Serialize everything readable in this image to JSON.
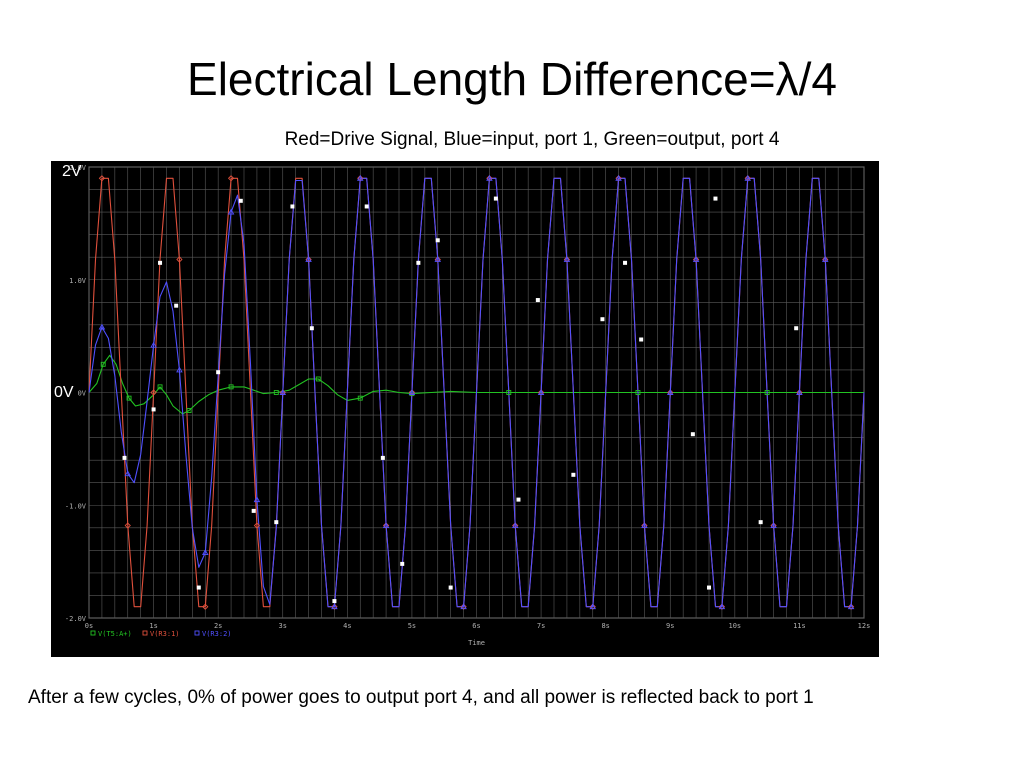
{
  "slide": {
    "title": "Electrical Length Difference=λ/4",
    "subtitle": "Red=Drive Signal, Blue=input, port 1, Green=output, port 4",
    "footer": "After a few cycles, 0% of power goes to output port 4, and all power is reflected back to port 1",
    "label_2v": "2V",
    "label_0v": "0V"
  },
  "chart_data": {
    "type": "line",
    "title": "",
    "xlabel": "Time",
    "ylabel": "",
    "xlim": [
      0,
      12
    ],
    "ylim": [
      -2.0,
      2.0
    ],
    "x_unit": "ns",
    "x_ticks": [
      "0s",
      "1s",
      "2s",
      "3s",
      "4s",
      "5s",
      "6s",
      "7s",
      "8s",
      "9s",
      "10s",
      "11s",
      "12s"
    ],
    "x_tick_values": [
      0,
      1,
      2,
      3,
      4,
      5,
      6,
      7,
      8,
      9,
      10,
      11,
      12
    ],
    "y_ticks": [
      "2.0V",
      "1.0V",
      "0V",
      "-1.0V",
      "-2.0V"
    ],
    "y_tick_values": [
      2.0,
      1.0,
      0.0,
      -1.0,
      -2.0
    ],
    "grid": true,
    "background": "#000000",
    "grid_color": "#5a5a5a",
    "legend_position": "bottom-left",
    "series": [
      {
        "name": "V(T5:A+)",
        "color": "#22c322",
        "marker": "square",
        "x": [
          0,
          0.12,
          0.22,
          0.32,
          0.42,
          0.52,
          0.62,
          0.72,
          0.85,
          1.0,
          1.1,
          1.2,
          1.3,
          1.45,
          1.55,
          1.7,
          1.85,
          2.0,
          2.2,
          2.4,
          2.55,
          2.7,
          2.9,
          3.1,
          3.25,
          3.4,
          3.55,
          3.7,
          3.85,
          4.0,
          4.2,
          4.4,
          4.6,
          4.8,
          5.0,
          5.3,
          5.6,
          6.0,
          6.5,
          7.0,
          7.5,
          8.0,
          8.5,
          9.0,
          9.5,
          10.0,
          10.5,
          11.0,
          11.5,
          12.0
        ],
        "values": [
          0.0,
          0.08,
          0.25,
          0.33,
          0.25,
          0.08,
          -0.05,
          -0.12,
          -0.1,
          -0.02,
          0.05,
          -0.02,
          -0.12,
          -0.19,
          -0.16,
          -0.08,
          -0.02,
          0.02,
          0.05,
          0.05,
          0.02,
          -0.01,
          0.0,
          0.02,
          0.07,
          0.12,
          0.12,
          0.06,
          -0.02,
          -0.07,
          -0.05,
          0.01,
          0.02,
          0.0,
          -0.01,
          0.0,
          0.01,
          0.0,
          0.0,
          0.0,
          0.0,
          0.0,
          0.0,
          0.0,
          0.0,
          0.0,
          0.0,
          0.0,
          0.0,
          0.0
        ]
      },
      {
        "name": "V(R3:1)",
        "color": "#e0503c",
        "marker": "diamond",
        "x": [
          0,
          0.1,
          0.2,
          0.3,
          0.4,
          0.5,
          0.6,
          0.7,
          0.8,
          0.9,
          1.0,
          1.1,
          1.2,
          1.3,
          1.4,
          1.5,
          1.6,
          1.7,
          1.8,
          1.9,
          2.0,
          2.1,
          2.2,
          2.3,
          2.4,
          2.5,
          2.6,
          2.7,
          2.8,
          2.9,
          3.0,
          3.1,
          3.2,
          3.3,
          3.4,
          3.5,
          3.6,
          3.7,
          3.8,
          3.9,
          4.0,
          4.1,
          4.2,
          4.3,
          4.4,
          4.5,
          4.6,
          4.7,
          4.8,
          4.9,
          5.0,
          5.1,
          5.2,
          5.3,
          5.4,
          5.5,
          5.6,
          5.7,
          5.8,
          5.9,
          6.0,
          6.1,
          6.2,
          6.3,
          6.4,
          6.5,
          6.6,
          6.7,
          6.8,
          6.9,
          7.0,
          7.1,
          7.2,
          7.3,
          7.4,
          7.5,
          7.6,
          7.7,
          7.8,
          7.9,
          8.0,
          8.1,
          8.2,
          8.3,
          8.4,
          8.5,
          8.6,
          8.7,
          8.8,
          8.9,
          9.0,
          9.1,
          9.2,
          9.3,
          9.4,
          9.5,
          9.6,
          9.7,
          9.8,
          9.9,
          10.0,
          10.1,
          10.2,
          10.3,
          10.4,
          10.5,
          10.6,
          10.7,
          10.8,
          10.9,
          11.0,
          11.1,
          11.2,
          11.3,
          11.4,
          11.5,
          11.6,
          11.7,
          11.8,
          11.9,
          12.0
        ],
        "values": [
          0.0,
          1.18,
          1.9,
          1.9,
          1.18,
          0.0,
          -1.18,
          -1.9,
          -1.9,
          -1.18,
          0.0,
          1.18,
          1.9,
          1.9,
          1.18,
          0.0,
          -1.18,
          -1.9,
          -1.9,
          -1.18,
          0.0,
          1.18,
          1.9,
          1.9,
          1.18,
          0.0,
          -1.18,
          -1.9,
          -1.9,
          -1.18,
          0.0,
          1.18,
          1.9,
          1.9,
          1.18,
          0.0,
          -1.18,
          -1.9,
          -1.9,
          -1.18,
          0.0,
          1.18,
          1.9,
          1.9,
          1.18,
          0.0,
          -1.18,
          -1.9,
          -1.9,
          -1.18,
          0.0,
          1.18,
          1.9,
          1.9,
          1.18,
          0.0,
          -1.18,
          -1.9,
          -1.9,
          -1.18,
          0.0,
          1.18,
          1.9,
          1.9,
          1.18,
          0.0,
          -1.18,
          -1.9,
          -1.9,
          -1.18,
          0.0,
          1.18,
          1.9,
          1.9,
          1.18,
          0.0,
          -1.18,
          -1.9,
          -1.9,
          -1.18,
          0.0,
          1.18,
          1.9,
          1.9,
          1.18,
          0.0,
          -1.18,
          -1.9,
          -1.9,
          -1.18,
          0.0,
          1.18,
          1.9,
          1.9,
          1.18,
          0.0,
          -1.18,
          -1.9,
          -1.9,
          -1.18,
          0.0,
          1.18,
          1.9,
          1.9,
          1.18,
          0.0,
          -1.18,
          -1.9,
          -1.9,
          -1.18,
          0.0,
          1.18,
          1.9,
          1.9,
          1.18,
          0.0,
          -1.18,
          -1.9,
          -1.9,
          -1.18,
          0.0
        ]
      },
      {
        "name": "V(R3:2)",
        "color": "#5050ff",
        "marker": "triangle",
        "x": [
          0,
          0.1,
          0.2,
          0.3,
          0.4,
          0.5,
          0.6,
          0.7,
          0.8,
          0.9,
          1.0,
          1.1,
          1.2,
          1.3,
          1.4,
          1.5,
          1.6,
          1.7,
          1.8,
          1.9,
          2.0,
          2.1,
          2.2,
          2.3,
          2.4,
          2.5,
          2.6,
          2.7,
          2.8,
          2.9,
          3.0,
          3.1,
          3.2,
          3.3,
          3.4,
          3.5,
          3.6,
          3.7,
          3.8,
          3.9,
          4.0,
          4.1,
          4.2,
          4.3,
          4.4,
          4.5,
          4.6,
          4.7,
          4.8,
          4.9,
          5.0,
          5.1,
          5.2,
          5.3,
          5.4,
          5.5,
          5.6,
          5.7,
          5.8,
          5.9,
          6.0,
          6.1,
          6.2,
          6.3,
          6.4,
          6.5,
          6.6,
          6.7,
          6.8,
          6.9,
          7.0,
          7.1,
          7.2,
          7.3,
          7.4,
          7.5,
          7.6,
          7.7,
          7.8,
          7.9,
          8.0,
          8.1,
          8.2,
          8.3,
          8.4,
          8.5,
          8.6,
          8.7,
          8.8,
          8.9,
          9.0,
          9.1,
          9.2,
          9.3,
          9.4,
          9.5,
          9.6,
          9.7,
          9.8,
          9.9,
          10.0,
          10.1,
          10.2,
          10.3,
          10.4,
          10.5,
          10.6,
          10.7,
          10.8,
          10.9,
          11.0,
          11.1,
          11.2,
          11.3,
          11.4,
          11.5,
          11.6,
          11.7,
          11.8,
          11.9,
          12.0
        ],
        "values": [
          0.0,
          0.42,
          0.58,
          0.48,
          0.15,
          -0.35,
          -0.72,
          -0.8,
          -0.55,
          -0.08,
          0.42,
          0.85,
          0.98,
          0.72,
          0.2,
          -0.55,
          -1.2,
          -1.55,
          -1.42,
          -0.75,
          0.15,
          1.05,
          1.6,
          1.75,
          1.32,
          0.25,
          -0.95,
          -1.72,
          -1.88,
          -1.2,
          0.0,
          1.18,
          1.88,
          1.88,
          1.18,
          0.0,
          -1.18,
          -1.9,
          -1.9,
          -1.18,
          0.0,
          1.18,
          1.9,
          1.9,
          1.18,
          0.0,
          -1.18,
          -1.9,
          -1.9,
          -1.18,
          0.0,
          1.18,
          1.9,
          1.9,
          1.18,
          0.0,
          -1.18,
          -1.9,
          -1.9,
          -1.18,
          0.0,
          1.18,
          1.9,
          1.9,
          1.18,
          0.0,
          -1.18,
          -1.9,
          -1.9,
          -1.18,
          0.0,
          1.18,
          1.9,
          1.9,
          1.18,
          0.0,
          -1.18,
          -1.9,
          -1.9,
          -1.18,
          0.0,
          1.18,
          1.9,
          1.9,
          1.18,
          0.0,
          -1.18,
          -1.9,
          -1.9,
          -1.18,
          0.0,
          1.18,
          1.9,
          1.9,
          1.18,
          0.0,
          -1.18,
          -1.9,
          -1.9,
          -1.18,
          0.0,
          1.18,
          1.9,
          1.9,
          1.18,
          0.0,
          -1.18,
          -1.9,
          -1.9,
          -1.18,
          0.0,
          1.18,
          1.9,
          1.9,
          1.18,
          0.0,
          -1.18,
          -1.9,
          -1.9,
          -1.18,
          0.0
        ]
      }
    ],
    "sample_points": [
      {
        "x": 0.55,
        "y": -0.58
      },
      {
        "x": 1.0,
        "y": -0.15
      },
      {
        "x": 1.1,
        "y": 1.15
      },
      {
        "x": 1.35,
        "y": 0.77
      },
      {
        "x": 1.7,
        "y": -1.73
      },
      {
        "x": 2.0,
        "y": 0.18
      },
      {
        "x": 2.35,
        "y": 1.7
      },
      {
        "x": 2.55,
        "y": -1.05
      },
      {
        "x": 2.9,
        "y": -1.15
      },
      {
        "x": 3.15,
        "y": 1.65
      },
      {
        "x": 3.45,
        "y": 0.57
      },
      {
        "x": 3.8,
        "y": -1.85
      },
      {
        "x": 4.3,
        "y": 1.65
      },
      {
        "x": 4.55,
        "y": -0.58
      },
      {
        "x": 4.85,
        "y": -1.52
      },
      {
        "x": 5.1,
        "y": 1.15
      },
      {
        "x": 5.4,
        "y": 1.35
      },
      {
        "x": 5.6,
        "y": -1.73
      },
      {
        "x": 6.3,
        "y": 1.72
      },
      {
        "x": 6.65,
        "y": -0.95
      },
      {
        "x": 6.95,
        "y": 0.82
      },
      {
        "x": 7.5,
        "y": -0.73
      },
      {
        "x": 7.95,
        "y": 0.65
      },
      {
        "x": 8.3,
        "y": 1.15
      },
      {
        "x": 8.55,
        "y": 0.47
      },
      {
        "x": 9.35,
        "y": -0.37
      },
      {
        "x": 9.6,
        "y": -1.73
      },
      {
        "x": 9.7,
        "y": 1.72
      },
      {
        "x": 10.4,
        "y": -1.15
      },
      {
        "x": 10.95,
        "y": 0.57
      }
    ]
  }
}
